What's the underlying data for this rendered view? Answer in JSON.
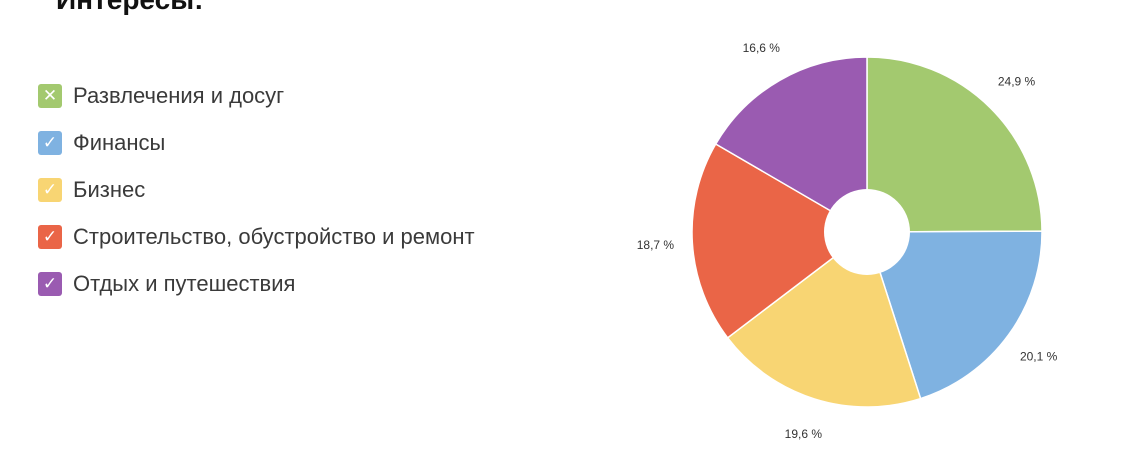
{
  "page": {
    "title": "Интересы:"
  },
  "legend": {
    "items": [
      {
        "label": "Развлечения и досуг",
        "color": "#a3c96f",
        "icon": "x-icon",
        "mark": "✕"
      },
      {
        "label": "Финансы",
        "color": "#7fb2e1",
        "icon": "check-icon",
        "mark": "✓"
      },
      {
        "label": "Бизнес",
        "color": "#f8d573",
        "icon": "check-icon",
        "mark": "✓"
      },
      {
        "label": "Строительство, обустройство и ремонт",
        "color": "#ea6547",
        "icon": "check-icon",
        "mark": "✓"
      },
      {
        "label": "Отдых и путешествия",
        "color": "#9a5bb1",
        "icon": "check-icon",
        "mark": "✓"
      }
    ]
  },
  "chart_data": {
    "type": "pie",
    "variant": "donut",
    "categories": [
      "Развлечения и досуг",
      "Финансы",
      "Бизнес",
      "Строительство, обустройство и ремонт",
      "Отдых и путешествия"
    ],
    "values": [
      24.9,
      20.1,
      19.6,
      18.7,
      16.6
    ],
    "labels": [
      "24,9 %",
      "20,1 %",
      "19,6 %",
      "18,7 %",
      "16,6 %"
    ],
    "colors": [
      "#a3c96f",
      "#7fb2e1",
      "#f8d573",
      "#ea6547",
      "#9a5bb1"
    ],
    "start_angle": "12 o'clock",
    "direction": "clockwise",
    "legend_position": "left"
  }
}
